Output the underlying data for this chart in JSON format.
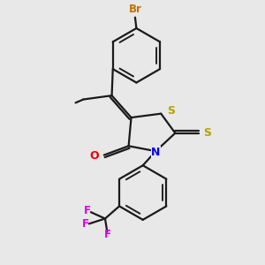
{
  "background_color": "#e8e8e8",
  "bond_color": "#1a1a1a",
  "atom_colors": {
    "Br": "#c07000",
    "S": "#b8a000",
    "N": "#0000ee",
    "O": "#ee0000",
    "F": "#e000e0"
  },
  "figsize": [
    3.0,
    3.0
  ],
  "dpi": 100,
  "lw": 1.6
}
